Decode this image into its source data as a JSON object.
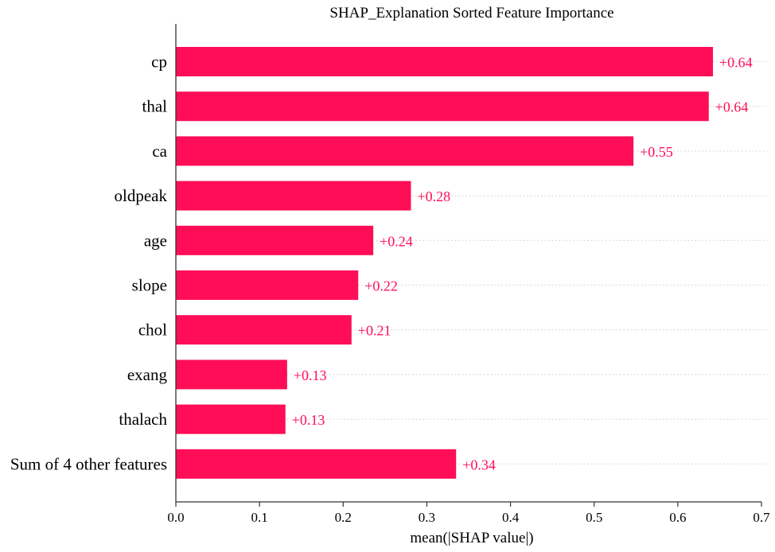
{
  "chart_data": {
    "type": "bar",
    "orientation": "horizontal",
    "title": "SHAP_Explanation Sorted Feature Importance",
    "xlabel": "mean(|SHAP value|)",
    "ylabel": "",
    "xlim": [
      0,
      0.7
    ],
    "xticks": [
      0.0,
      0.1,
      0.2,
      0.3,
      0.4,
      0.5,
      0.6,
      0.7
    ],
    "xtick_labels": [
      "0.0",
      "0.1",
      "0.2",
      "0.3",
      "0.4",
      "0.5",
      "0.6",
      "0.7"
    ],
    "grid": "dotted horizontal guide lines per row",
    "categories": [
      "cp",
      "thal",
      "ca",
      "oldpeak",
      "age",
      "slope",
      "chol",
      "exang",
      "thalach",
      "Sum of 4 other features"
    ],
    "values": [
      0.642,
      0.637,
      0.547,
      0.281,
      0.236,
      0.218,
      0.21,
      0.133,
      0.131,
      0.335
    ],
    "value_labels": [
      "+0.64",
      "+0.64",
      "+0.55",
      "+0.28",
      "+0.24",
      "+0.22",
      "+0.21",
      "+0.13",
      "+0.13",
      "+0.34"
    ],
    "colors": {
      "bar": "#ff0d57",
      "value_label": "#ff0d57",
      "axis": "#333333",
      "guide": "#cccccc",
      "background": "#ffffff"
    }
  }
}
